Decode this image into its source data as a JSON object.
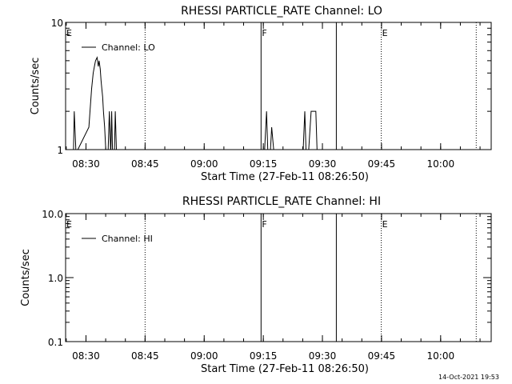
{
  "footer": {
    "timestamp": "14-Oct-2021 19:53"
  },
  "chart_data": [
    {
      "type": "line",
      "title": "RHESSI PARTICLE_RATE Channel: LO",
      "xlabel": "Start Time (27-Feb-11 08:26:50)",
      "ylabel": "Counts/sec",
      "x_start": "08:24:50",
      "x_end": "10:12:50",
      "xlim_minutes": [
        -2,
        106
      ],
      "x_tick_labels": [
        "08:30",
        "08:45",
        "09:00",
        "09:15",
        "09:30",
        "09:45",
        "10:00"
      ],
      "x_tick_minutes": [
        3.17,
        18.17,
        33.17,
        48.17,
        63.17,
        78.17,
        93.17
      ],
      "y_scale": "log",
      "ylim": [
        1,
        10
      ],
      "y_tick_labels": [
        "1",
        "10"
      ],
      "y_tick_values": [
        1,
        10
      ],
      "legend": {
        "placement": "top-left",
        "entries": [
          "Channel: LO"
        ]
      },
      "series": [
        {
          "name": "Channel: LO",
          "x_minutes": [
            0,
            0.2,
            0.6,
            0.9,
            1.1,
            3.9,
            4.2,
            4.6,
            5.0,
            5.3,
            5.6,
            6.0,
            6.3,
            6.5,
            6.8,
            7.0,
            7.2,
            7.4,
            7.6,
            7.9,
            8.2,
            8.5,
            8.8,
            9.1,
            9.4,
            9.5,
            9.7,
            9.9,
            10.2,
            10.4,
            10.6,
            10.9,
            11.2,
            11.5,
            11.8,
            12.0,
            47.8,
            48.5,
            49.0,
            49.3,
            49.6,
            50.0,
            50.3,
            50.8,
            51.2,
            51.5,
            57.8,
            58.3,
            58.7,
            59.0,
            59.3,
            59.7,
            60.3,
            60.8,
            61.2,
            61.5,
            61.8,
            62.2
          ],
          "values": [
            1,
            2,
            1,
            1,
            1,
            1.5,
            2,
            3,
            4,
            4.5,
            5,
            5.3,
            4.5,
            5,
            4.3,
            3.5,
            3,
            2.6,
            2,
            1.5,
            1,
            1,
            1,
            2,
            1,
            1,
            2,
            1,
            1,
            1,
            2,
            1,
            1,
            1,
            1,
            1,
            1,
            1,
            2,
            1,
            1,
            1,
            1.5,
            1,
            1,
            1,
            1,
            1,
            2,
            1,
            1,
            1,
            2,
            2,
            2,
            2,
            1,
            1
          ]
        }
      ],
      "markers": [
        {
          "label": "E",
          "minute": -2,
          "style": "none"
        },
        {
          "label": "",
          "minute": 18.17,
          "style": "dotted"
        },
        {
          "label": "F",
          "minute": 47.6,
          "style": "solid"
        },
        {
          "label": "",
          "minute": 66.7,
          "style": "solid"
        },
        {
          "label": "E",
          "minute": 78.1,
          "style": "dotted"
        },
        {
          "label": "",
          "minute": 102.2,
          "style": "dotted"
        }
      ]
    },
    {
      "type": "line",
      "title": "RHESSI PARTICLE_RATE Channel: HI",
      "xlabel": "Start Time (27-Feb-11 08:26:50)",
      "ylabel": "Counts/sec",
      "x_start": "08:24:50",
      "x_end": "10:12:50",
      "xlim_minutes": [
        -2,
        106
      ],
      "x_tick_labels": [
        "08:30",
        "08:45",
        "09:00",
        "09:15",
        "09:30",
        "09:45",
        "10:00"
      ],
      "x_tick_minutes": [
        3.17,
        18.17,
        33.17,
        48.17,
        63.17,
        78.17,
        93.17
      ],
      "y_scale": "log",
      "ylim": [
        0.1,
        10
      ],
      "y_tick_labels": [
        "0.1",
        "1.0",
        "10.0"
      ],
      "y_tick_values": [
        0.1,
        1,
        10
      ],
      "legend": {
        "placement": "top-left",
        "entries": [
          "Channel: HI"
        ]
      },
      "series": [
        {
          "name": "Channel: HI",
          "x_minutes": [],
          "values": []
        }
      ],
      "markers": [
        {
          "label": "E",
          "minute": -2,
          "style": "none"
        },
        {
          "label": "",
          "minute": 18.17,
          "style": "dotted"
        },
        {
          "label": "F",
          "minute": 47.6,
          "style": "solid"
        },
        {
          "label": "",
          "minute": 66.7,
          "style": "solid"
        },
        {
          "label": "E",
          "minute": 78.1,
          "style": "dotted"
        },
        {
          "label": "",
          "minute": 102.2,
          "style": "dotted"
        }
      ]
    }
  ]
}
